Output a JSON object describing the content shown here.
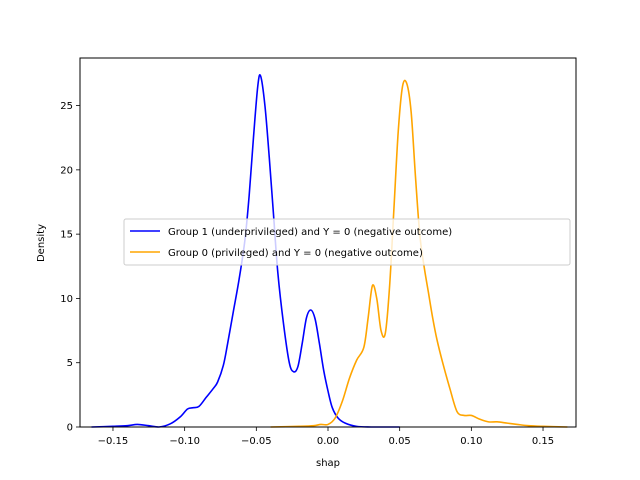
{
  "chart_data": {
    "type": "line",
    "title": "",
    "xlabel": "shap",
    "ylabel": "Density",
    "xlim": [
      -0.173,
      0.173
    ],
    "ylim": [
      0,
      28.7
    ],
    "grid": false,
    "legend_position": "center",
    "xticks": [
      -0.15,
      -0.1,
      -0.05,
      0.0,
      0.05,
      0.1,
      0.15
    ],
    "xtick_labels": [
      "−0.15",
      "−0.10",
      "−0.05",
      "0.00",
      "0.05",
      "0.10",
      "0.15"
    ],
    "yticks": [
      0,
      5,
      10,
      15,
      20,
      25
    ],
    "ytick_labels": [
      "0",
      "5",
      "10",
      "15",
      "20",
      "25"
    ],
    "series": [
      {
        "name": "Group 1 (underprivileged) and Y = 0 (negative outcome)",
        "color": "#0000ff",
        "x": [
          -0.165,
          -0.15,
          -0.14,
          -0.133,
          -0.125,
          -0.118,
          -0.11,
          -0.103,
          -0.098,
          -0.094,
          -0.09,
          -0.085,
          -0.08,
          -0.077,
          -0.073,
          -0.07,
          -0.066,
          -0.062,
          -0.058,
          -0.055,
          -0.052,
          -0.049,
          -0.047,
          -0.044,
          -0.041,
          -0.038,
          -0.035,
          -0.031,
          -0.027,
          -0.024,
          -0.021,
          -0.018,
          -0.015,
          -0.012,
          -0.009,
          -0.006,
          -0.003,
          0.0,
          0.003,
          0.007,
          0.012,
          0.02,
          0.03,
          0.04,
          0.05
        ],
        "y": [
          0.0,
          0.05,
          0.1,
          0.2,
          0.1,
          0.0,
          0.25,
          0.8,
          1.4,
          1.5,
          1.6,
          2.3,
          3.0,
          3.5,
          4.8,
          6.5,
          9.0,
          11.5,
          14.5,
          18.0,
          22.5,
          26.5,
          27.3,
          25.0,
          21.0,
          16.5,
          12.0,
          8.0,
          5.0,
          4.3,
          4.7,
          6.5,
          8.5,
          9.1,
          8.4,
          6.5,
          4.4,
          2.8,
          1.5,
          0.7,
          0.3,
          0.05,
          0.0,
          0.0,
          0.0
        ]
      },
      {
        "name": "Group 0 (privileged) and Y = 0 (negative outcome)",
        "color": "#ffa500",
        "x": [
          -0.04,
          -0.02,
          -0.01,
          -0.005,
          0.0,
          0.005,
          0.01,
          0.015,
          0.02,
          0.025,
          0.028,
          0.031,
          0.034,
          0.037,
          0.04,
          0.043,
          0.046,
          0.049,
          0.052,
          0.055,
          0.058,
          0.061,
          0.064,
          0.067,
          0.07,
          0.073,
          0.076,
          0.08,
          0.085,
          0.09,
          0.095,
          0.1,
          0.106,
          0.112,
          0.118,
          0.125,
          0.132,
          0.14,
          0.15,
          0.167
        ],
        "y": [
          0.0,
          0.05,
          0.1,
          0.2,
          0.2,
          0.7,
          2.0,
          3.8,
          5.2,
          6.2,
          8.5,
          11.0,
          10.0,
          7.5,
          7.3,
          11.0,
          17.0,
          23.0,
          26.5,
          26.7,
          24.5,
          19.5,
          15.0,
          12.5,
          10.5,
          8.5,
          6.8,
          5.0,
          3.0,
          1.2,
          0.9,
          0.9,
          0.6,
          0.4,
          0.4,
          0.3,
          0.2,
          0.1,
          0.05,
          0.0
        ]
      }
    ]
  }
}
